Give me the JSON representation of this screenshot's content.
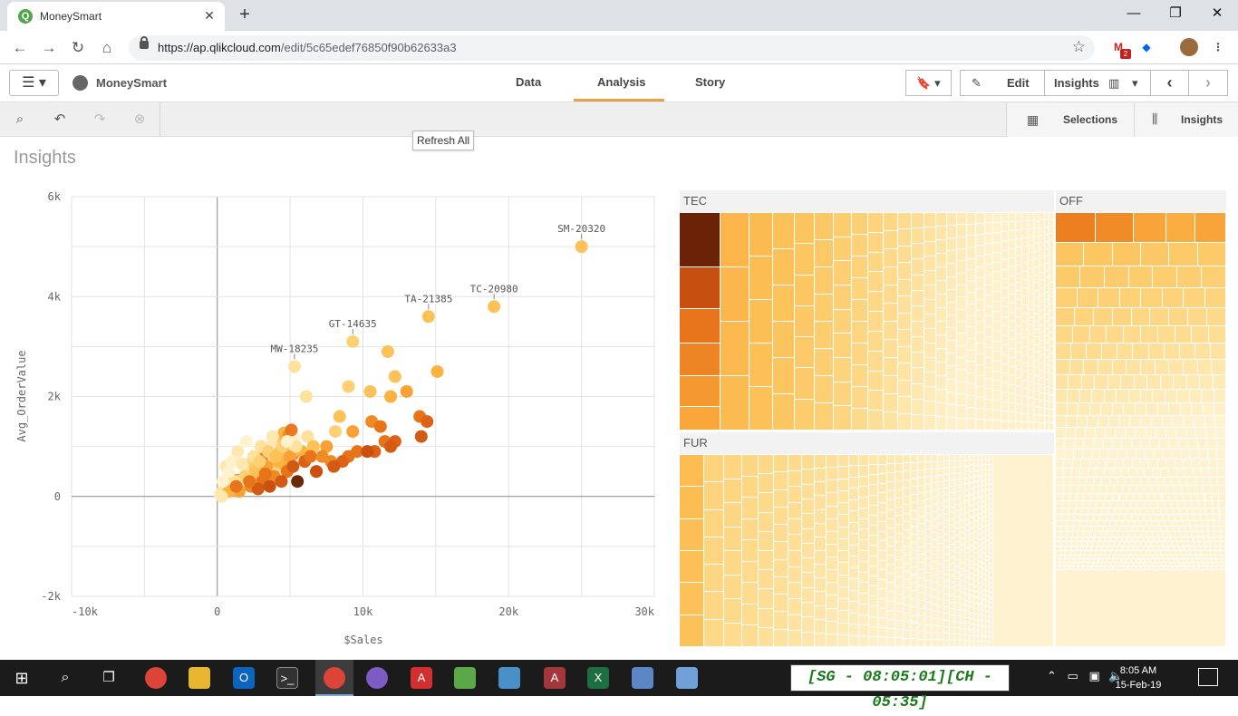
{
  "browser": {
    "tab_title": "MoneySmart",
    "tab_favicon": "Q",
    "url_host": "https://ap.qlikcloud.com",
    "url_path": "/edit/5c65edef76850f90b62633a3",
    "extension_badge": "2"
  },
  "app": {
    "name": "MoneySmart",
    "tabs": [
      {
        "label": "Data"
      },
      {
        "label": "Analysis"
      },
      {
        "label": "Story"
      }
    ],
    "active_tab": "Analysis",
    "edit_label": "Edit",
    "insights_label": "Insights"
  },
  "toolbar": {
    "selections_label": "Selections",
    "insights_label": "Insights",
    "tooltip": "Refresh All"
  },
  "page_title": "Insights",
  "chart_data": [
    {
      "type": "scatter",
      "xlabel": "$Sales",
      "ylabel": "Avg_OrderValue",
      "xlim": [
        -10000,
        30000
      ],
      "ylim": [
        -2000,
        6000
      ],
      "x_ticks": [
        "-10k",
        "0",
        "10k",
        "20k",
        "30k"
      ],
      "y_ticks": [
        "6k",
        "4k",
        "2k",
        "0",
        "-2k"
      ],
      "grid": true,
      "labeled_points": [
        {
          "label": "SM-20320",
          "x": 25000,
          "y": 5000
        },
        {
          "label": "TC-20980",
          "x": 19000,
          "y": 3800
        },
        {
          "label": "TA-21385",
          "x": 14500,
          "y": 3600
        },
        {
          "label": "GT-14635",
          "x": 9300,
          "y": 3100
        },
        {
          "label": "MW-18235",
          "x": 5300,
          "y": 2600
        }
      ],
      "points": [
        {
          "x": 11700,
          "y": 2900,
          "c": "#fcc157"
        },
        {
          "x": 15100,
          "y": 2500,
          "c": "#fbb23e"
        },
        {
          "x": 12200,
          "y": 2400,
          "c": "#fcc157"
        },
        {
          "x": 9000,
          "y": 2200,
          "c": "#fdd075"
        },
        {
          "x": 13000,
          "y": 2100,
          "c": "#f9a135"
        },
        {
          "x": 10500,
          "y": 2100,
          "c": "#fcc157"
        },
        {
          "x": 6100,
          "y": 2000,
          "c": "#fee29b"
        },
        {
          "x": 11900,
          "y": 2000,
          "c": "#fbb23e"
        },
        {
          "x": 8400,
          "y": 1600,
          "c": "#fcc157"
        },
        {
          "x": 13900,
          "y": 1600,
          "c": "#e8741a"
        },
        {
          "x": 10600,
          "y": 1500,
          "c": "#f08a24"
        },
        {
          "x": 14400,
          "y": 1500,
          "c": "#dd6116"
        },
        {
          "x": 11200,
          "y": 1400,
          "c": "#e8741a"
        },
        {
          "x": 9300,
          "y": 1300,
          "c": "#f9a135"
        },
        {
          "x": 8100,
          "y": 1300,
          "c": "#fdd075"
        },
        {
          "x": 14000,
          "y": 1200,
          "c": "#d35a12"
        },
        {
          "x": 11500,
          "y": 1100,
          "c": "#e8741a"
        },
        {
          "x": 12200,
          "y": 1100,
          "c": "#dd6116"
        },
        {
          "x": 6200,
          "y": 1200,
          "c": "#fee29b"
        },
        {
          "x": 3800,
          "y": 1200,
          "c": "#fee8b0"
        },
        {
          "x": 11900,
          "y": 1000,
          "c": "#d35a12"
        },
        {
          "x": 9600,
          "y": 900,
          "c": "#e8741a"
        },
        {
          "x": 10800,
          "y": 900,
          "c": "#dd6116"
        },
        {
          "x": 10300,
          "y": 900,
          "c": "#c9500f"
        },
        {
          "x": 9000,
          "y": 800,
          "c": "#e8741a"
        },
        {
          "x": 7800,
          "y": 700,
          "c": "#f08a24"
        },
        {
          "x": 8600,
          "y": 700,
          "c": "#dd6116"
        },
        {
          "x": 8000,
          "y": 600,
          "c": "#d35a12"
        },
        {
          "x": 6800,
          "y": 500,
          "c": "#e8741a"
        },
        {
          "x": 5500,
          "y": 300,
          "c": "#6b2a06"
        },
        {
          "x": 6800,
          "y": 500,
          "c": "#c9500f"
        },
        {
          "x": 5000,
          "y": 800,
          "c": "#f9a135"
        },
        {
          "x": 5800,
          "y": 900,
          "c": "#fbb23e"
        },
        {
          "x": 6600,
          "y": 1000,
          "c": "#fcc157"
        },
        {
          "x": 7500,
          "y": 1000,
          "c": "#f9a135"
        },
        {
          "x": 4500,
          "y": 1000,
          "c": "#fdd075"
        },
        {
          "x": 3000,
          "y": 1000,
          "c": "#fee29b"
        },
        {
          "x": 1400,
          "y": 900,
          "c": "#fee8b0"
        },
        {
          "x": 2000,
          "y": 1100,
          "c": "#fff2cc"
        },
        {
          "x": 4200,
          "y": 700,
          "c": "#fbb23e"
        },
        {
          "x": 3400,
          "y": 600,
          "c": "#f9a135"
        },
        {
          "x": 2600,
          "y": 500,
          "c": "#fcc157"
        },
        {
          "x": 1900,
          "y": 400,
          "c": "#fdd075"
        },
        {
          "x": 1200,
          "y": 300,
          "c": "#fee29b"
        },
        {
          "x": 4800,
          "y": 500,
          "c": "#e8741a"
        },
        {
          "x": 3900,
          "y": 400,
          "c": "#f08a24"
        },
        {
          "x": 3100,
          "y": 300,
          "c": "#e8741a"
        },
        {
          "x": 2300,
          "y": 200,
          "c": "#f08a24"
        },
        {
          "x": 1500,
          "y": 100,
          "c": "#f9a135"
        },
        {
          "x": 800,
          "y": 100,
          "c": "#fbb23e"
        },
        {
          "x": 300,
          "y": 0,
          "c": "#fee8b0"
        },
        {
          "x": 600,
          "y": 600,
          "c": "#fee8b0"
        },
        {
          "x": 1000,
          "y": 700,
          "c": "#fff2cc"
        },
        {
          "x": 2500,
          "y": 800,
          "c": "#fee29b"
        },
        {
          "x": 3500,
          "y": 900,
          "c": "#fdd075"
        },
        {
          "x": 5200,
          "y": 600,
          "c": "#d35a12"
        },
        {
          "x": 6000,
          "y": 700,
          "c": "#dd6116"
        },
        {
          "x": 4400,
          "y": 300,
          "c": "#d35a12"
        },
        {
          "x": 3600,
          "y": 200,
          "c": "#c9500f"
        },
        {
          "x": 2800,
          "y": 150,
          "c": "#d35a12"
        },
        {
          "x": 6400,
          "y": 800,
          "c": "#e8741a"
        },
        {
          "x": 7200,
          "y": 800,
          "c": "#f08a24"
        },
        {
          "x": 800,
          "y": 500,
          "c": "#fff2cc"
        },
        {
          "x": 400,
          "y": 300,
          "c": "#fff2cc"
        },
        {
          "x": 1700,
          "y": 650,
          "c": "#fee8b0"
        },
        {
          "x": 2900,
          "y": 700,
          "c": "#fdd075"
        },
        {
          "x": 4000,
          "y": 800,
          "c": "#fcc157"
        },
        {
          "x": 5400,
          "y": 1000,
          "c": "#fee29b"
        },
        {
          "x": 4800,
          "y": 1100,
          "c": "#fff2cc"
        },
        {
          "x": 2200,
          "y": 300,
          "c": "#e8741a"
        },
        {
          "x": 1300,
          "y": 200,
          "c": "#e8741a"
        },
        {
          "x": 3300,
          "y": 450,
          "c": "#e8741a"
        }
      ]
    },
    {
      "type": "treemap",
      "groups": [
        {
          "label": "TEC"
        },
        {
          "label": "OFF"
        },
        {
          "label": "FUR"
        }
      ]
    }
  ],
  "taskbar": {
    "clock_overlay": "[SG - 08:05:01][CH - 05:35]",
    "time": "8:05 AM",
    "date": "15-Feb-19"
  }
}
